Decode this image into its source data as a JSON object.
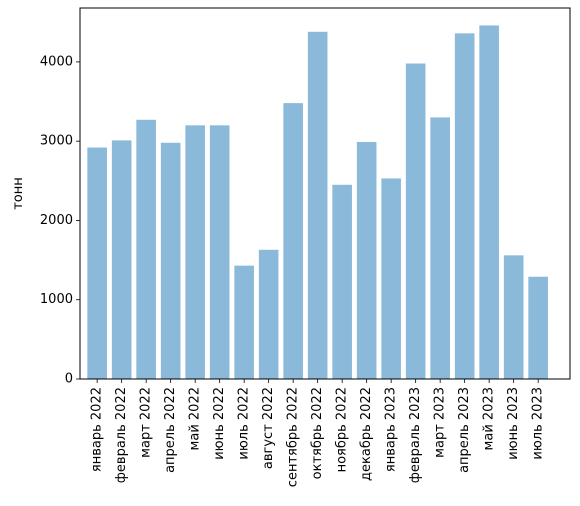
{
  "chart_data": {
    "type": "bar",
    "categories": [
      "январь 2022",
      "февраль 2022",
      "март 2022",
      "апрель 2022",
      "май 2022",
      "июнь 2022",
      "июль 2022",
      "август 2022",
      "сентябрь 2022",
      "октябрь 2022",
      "ноябрь 2022",
      "декабрь 2022",
      "январь 2023",
      "февраль 2023",
      "март 2023",
      "апрель 2023",
      "май 2023",
      "июнь 2023",
      "июль 2023"
    ],
    "values": [
      2920,
      3010,
      3270,
      2980,
      3200,
      3200,
      1430,
      1630,
      3480,
      4380,
      2450,
      2990,
      2530,
      3980,
      3300,
      4360,
      4460,
      1560,
      1290
    ],
    "title": "",
    "xlabel": "",
    "ylabel": "тонн",
    "ylim": [
      0,
      4680
    ],
    "yticks": [
      0,
      1000,
      2000,
      3000,
      4000
    ],
    "bar_color": "#8ab9da",
    "bar_opacity": 1,
    "grid": false
  }
}
